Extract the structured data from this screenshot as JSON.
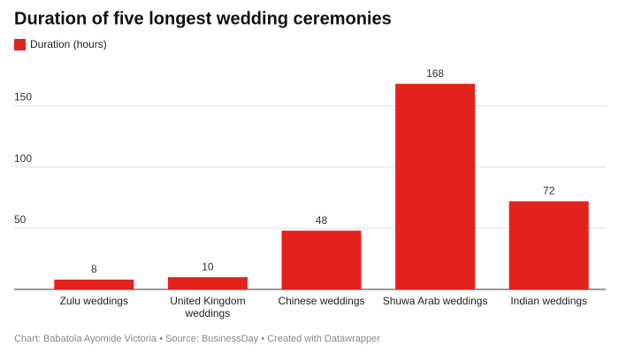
{
  "chart_data": {
    "type": "bar",
    "title": "Duration of five longest wedding ceremonies",
    "legend": "Duration (hours)",
    "categories": [
      "Zulu weddings",
      "United Kingdom weddings",
      "Chinese weddings",
      "Shuwa Arab weddings",
      "Indian weddings"
    ],
    "values": [
      8,
      10,
      48,
      168,
      72
    ],
    "color": "#e3221b",
    "ylim": [
      0,
      175
    ],
    "yticks": [
      50,
      100,
      150
    ],
    "grid": true,
    "source": "Chart: Babatola Ayomide Victoria • Source: BusinessDay • Created with Datawrapper"
  }
}
